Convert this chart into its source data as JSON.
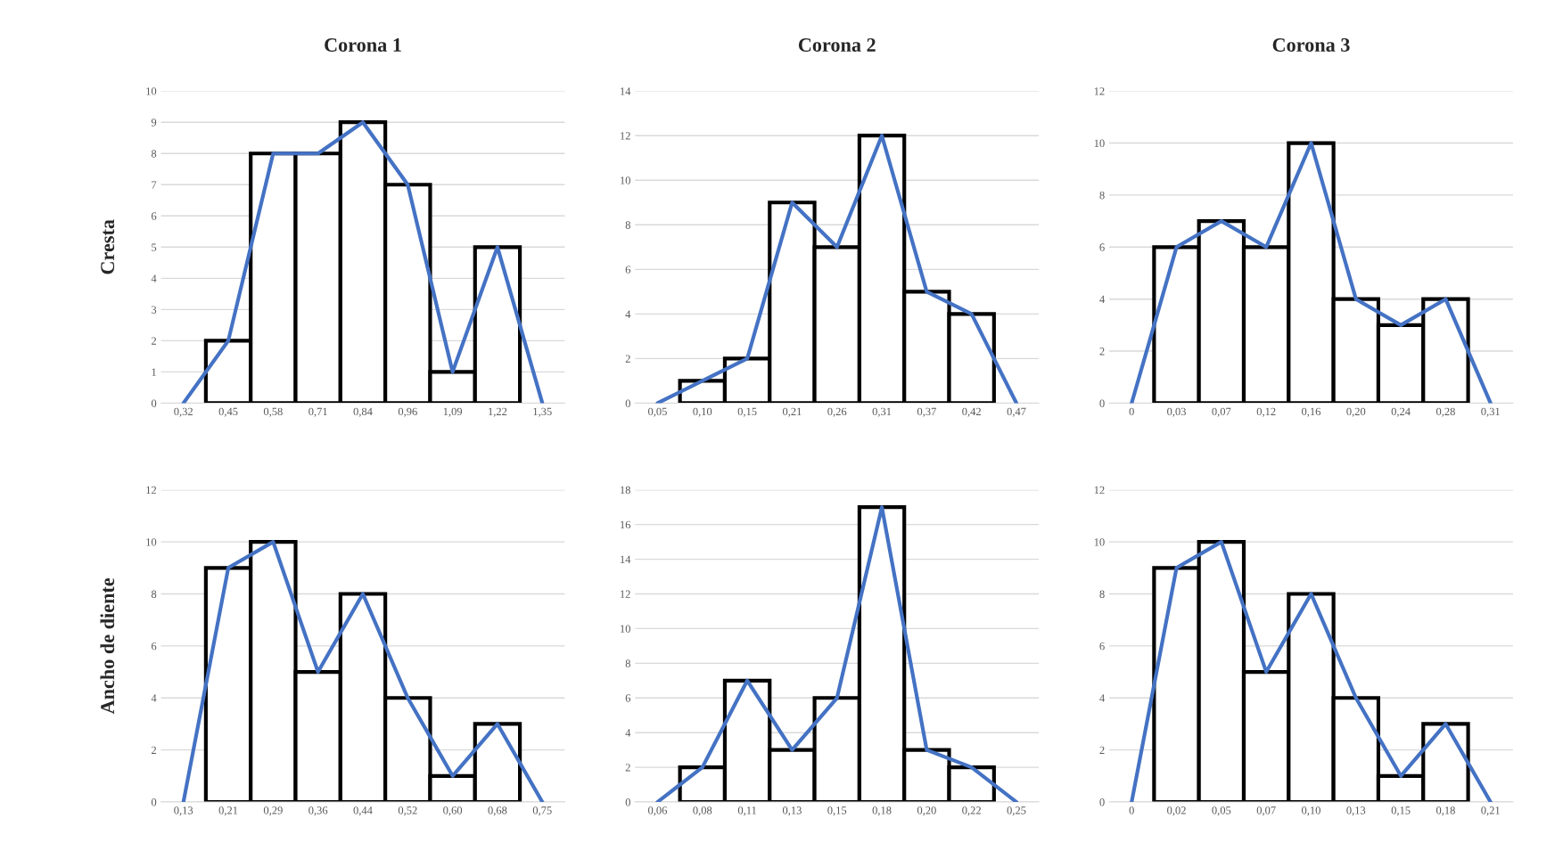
{
  "chart_data": [
    {
      "type": "bar",
      "title": "Corona 1",
      "ylabel": "Cresta",
      "categories": [
        "0,32",
        "0,45",
        "0,58",
        "0,71",
        "0,84",
        "0,96",
        "1,09",
        "1,22",
        "1,35"
      ],
      "series": [
        {
          "color": "#ffffff",
          "values": [
            0,
            2,
            8,
            8,
            9,
            7,
            1,
            5,
            0
          ]
        },
        {
          "type": "line",
          "color": "#4472c4",
          "values": [
            0,
            2,
            8,
            8,
            9,
            7,
            1,
            5,
            0
          ]
        }
      ],
      "ylim": [
        0,
        10
      ],
      "yticks": [
        0,
        1,
        2,
        3,
        4,
        5,
        6,
        7,
        8,
        9,
        10
      ],
      "grid": "y",
      "legend": false
    },
    {
      "type": "bar",
      "title": "Corona 2",
      "categories": [
        "0,05",
        "0,10",
        "0,15",
        "0,21",
        "0,26",
        "0,31",
        "0,37",
        "0,42",
        "0,47"
      ],
      "series": [
        {
          "color": "#ffffff",
          "values": [
            0,
            1,
            2,
            9,
            7,
            12,
            5,
            4,
            0
          ]
        },
        {
          "type": "line",
          "color": "#4472c4",
          "values": [
            0,
            1,
            2,
            9,
            7,
            12,
            5,
            4,
            0
          ]
        }
      ],
      "ylim": [
        0,
        14
      ],
      "yticks": [
        0,
        2,
        4,
        6,
        8,
        10,
        12,
        14
      ],
      "grid": "y",
      "legend": false
    },
    {
      "type": "bar",
      "title": "Corona 3",
      "categories": [
        "0",
        "0,03",
        "0,07",
        "0,12",
        "0,16",
        "0,20",
        "0,24",
        "0,28",
        "0,31"
      ],
      "series": [
        {
          "color": "#ffffff",
          "values": [
            0,
            6,
            7,
            6,
            10,
            4,
            3,
            4,
            0
          ]
        },
        {
          "type": "line",
          "color": "#4472c4",
          "values": [
            0,
            6,
            7,
            6,
            10,
            4,
            3,
            4,
            0
          ]
        }
      ],
      "ylim": [
        0,
        12
      ],
      "yticks": [
        0,
        2,
        4,
        6,
        8,
        10,
        12
      ],
      "grid": "y",
      "legend": false
    },
    {
      "type": "bar",
      "ylabel": "Ancho de diente",
      "categories": [
        "0,13",
        "0,21",
        "0,29",
        "0,36",
        "0,44",
        "0,52",
        "0,60",
        "0,68",
        "0,75"
      ],
      "series": [
        {
          "color": "#ffffff",
          "values": [
            0,
            9,
            10,
            5,
            8,
            4,
            1,
            3,
            0
          ]
        },
        {
          "type": "line",
          "color": "#4472c4",
          "values": [
            0,
            9,
            10,
            5,
            8,
            4,
            1,
            3,
            0
          ]
        }
      ],
      "ylim": [
        0,
        12
      ],
      "yticks": [
        0,
        2,
        4,
        6,
        8,
        10,
        12
      ],
      "grid": "y",
      "legend": false
    },
    {
      "type": "bar",
      "categories": [
        "0,06",
        "0,08",
        "0,11",
        "0,13",
        "0,15",
        "0,18",
        "0,20",
        "0,22",
        "0,25"
      ],
      "series": [
        {
          "color": "#ffffff",
          "values": [
            0,
            2,
            7,
            3,
            6,
            17,
            3,
            2,
            0
          ]
        },
        {
          "type": "line",
          "color": "#4472c4",
          "values": [
            0,
            2,
            7,
            3,
            6,
            17,
            3,
            2,
            0
          ]
        }
      ],
      "ylim": [
        0,
        18
      ],
      "yticks": [
        0,
        2,
        4,
        6,
        8,
        10,
        12,
        14,
        16,
        18
      ],
      "grid": "y",
      "legend": false
    },
    {
      "type": "bar",
      "categories": [
        "0",
        "0,02",
        "0,05",
        "0,07",
        "0,10",
        "0,13",
        "0,15",
        "0,18",
        "0,21"
      ],
      "series": [
        {
          "color": "#ffffff",
          "values": [
            0,
            9,
            10,
            5,
            8,
            4,
            1,
            3,
            0
          ]
        },
        {
          "type": "line",
          "color": "#4472c4",
          "values": [
            0,
            9,
            10,
            5,
            8,
            4,
            1,
            3,
            0
          ]
        }
      ],
      "ylim": [
        0,
        12
      ],
      "yticks": [
        0,
        2,
        4,
        6,
        8,
        10,
        12
      ],
      "grid": "y",
      "legend": false
    }
  ]
}
